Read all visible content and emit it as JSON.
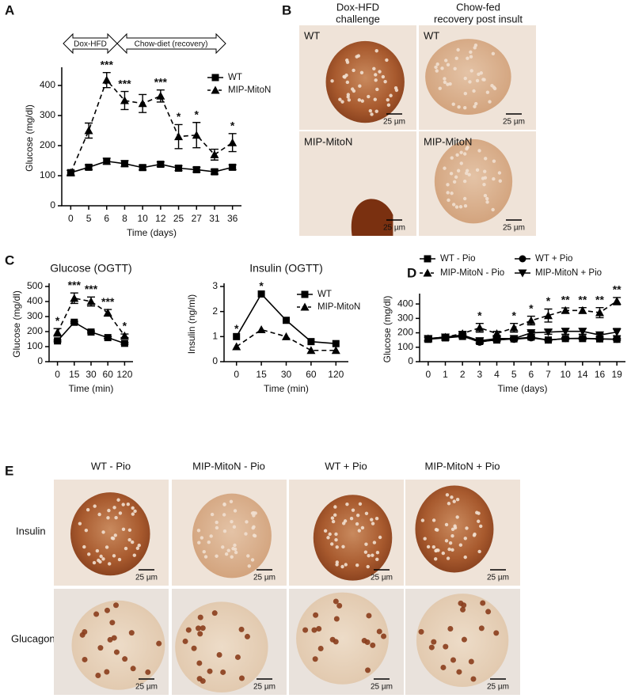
{
  "panel_labels": [
    "A",
    "B",
    "C",
    "D",
    "E"
  ],
  "regimen": [
    "Dox-HFD",
    "Chow-diet (recovery)"
  ],
  "histology_b": {
    "columns": [
      [
        "Dox-HFD",
        "challenge"
      ],
      [
        "Chow-fed",
        "recovery post insult"
      ]
    ],
    "rows": [
      "WT",
      "MIP-MitoN"
    ],
    "scale_bar": "25 µm"
  },
  "histology_e": {
    "columns": [
      "WT - Pio",
      "MIP-MitoN - Pio",
      "WT + Pio",
      "MIP-MitoN + Pio"
    ],
    "rows": [
      "Insulin",
      "Glucagon"
    ],
    "scale_bar": "25 µm"
  },
  "chart_data": [
    {
      "type": "line",
      "xlabel": "Time (days)",
      "ylabel": "Glucose (mg/dl)",
      "categories": [
        "0",
        "5",
        "6",
        "8",
        "10",
        "12",
        "25",
        "27",
        "31",
        "36"
      ],
      "ylim": [
        0,
        450
      ],
      "yticks": [
        0,
        100,
        200,
        300,
        400
      ],
      "series": [
        {
          "name": "WT",
          "color": "#000000",
          "marker": "square",
          "dashed": false,
          "values": [
            110,
            128,
            148,
            140,
            127,
            138,
            125,
            120,
            113,
            128
          ],
          "errors": [
            8,
            8,
            10,
            10,
            8,
            8,
            8,
            8,
            8,
            8
          ]
        },
        {
          "name": "MIP-MitoN",
          "color": "#000000",
          "marker": "triangle",
          "dashed": true,
          "values": [
            110,
            250,
            418,
            350,
            340,
            365,
            230,
            235,
            170,
            210
          ],
          "errors": [
            8,
            25,
            25,
            30,
            30,
            20,
            40,
            42,
            18,
            30
          ]
        }
      ],
      "significance": [
        null,
        null,
        "***",
        "***",
        null,
        "***",
        "*",
        "*",
        null,
        "*"
      ]
    },
    {
      "type": "line",
      "title": "Glucose (OGTT)",
      "xlabel": "Time (min)",
      "ylabel": "Glucose (mg/dl)",
      "categories": [
        "0",
        "15",
        "30",
        "60",
        "120"
      ],
      "ylim": [
        0,
        500
      ],
      "yticks": [
        0,
        100,
        200,
        300,
        400,
        500
      ],
      "series": [
        {
          "name": "WT",
          "color": "#000000",
          "marker": "square",
          "dashed": false,
          "values": [
            138,
            262,
            197,
            160,
            122
          ],
          "errors": [
            6,
            6,
            6,
            6,
            6
          ]
        },
        {
          "name": "MIP-MitoN",
          "color": "#000000",
          "marker": "triangle",
          "dashed": true,
          "values": [
            195,
            422,
            400,
            325,
            172
          ],
          "errors": [
            25,
            35,
            30,
            22,
            12
          ]
        }
      ],
      "significance": [
        "*",
        "***",
        "***",
        "***",
        "*"
      ]
    },
    {
      "type": "line",
      "title": "Insulin (OGTT)",
      "xlabel": "Time (min)",
      "ylabel": "Insulin (ng/ml)",
      "categories": [
        "0",
        "15",
        "30",
        "60",
        "120"
      ],
      "ylim": [
        0,
        3
      ],
      "yticks": [
        0,
        1,
        2,
        3
      ],
      "series": [
        {
          "name": "WT",
          "color": "#000000",
          "marker": "square",
          "dashed": false,
          "values": [
            1.0,
            2.7,
            1.65,
            0.8,
            0.72
          ]
        },
        {
          "name": "MIP-MitoN",
          "color": "#000000",
          "marker": "triangle",
          "dashed": true,
          "values": [
            0.6,
            1.28,
            1.0,
            0.45,
            0.45
          ]
        }
      ],
      "significance": [
        "*",
        "*",
        null,
        null,
        null
      ]
    },
    {
      "type": "line",
      "xlabel": "Time (days)",
      "ylabel": "Glucose (mg/dl)",
      "categories": [
        "0",
        "1",
        "2",
        "3",
        "4",
        "5",
        "6",
        "7",
        "10",
        "14",
        "16",
        "19"
      ],
      "ylim": [
        0,
        450
      ],
      "yticks": [
        0,
        100,
        200,
        300,
        400
      ],
      "series": [
        {
          "name": "WT - Pio",
          "color": "#000000",
          "marker": "square",
          "dashed": false,
          "values": [
            155,
            165,
            175,
            140,
            150,
            158,
            170,
            150,
            160,
            160,
            158,
            155
          ],
          "errors": [
            10,
            10,
            10,
            10,
            8,
            8,
            8,
            6,
            6,
            6,
            6,
            6
          ]
        },
        {
          "name": "MIP-MitoN - Pio",
          "color": "#000000",
          "marker": "triangle",
          "dashed": true,
          "values": [
            160,
            170,
            195,
            235,
            195,
            235,
            285,
            320,
            355,
            355,
            340,
            420
          ],
          "errors": [
            15,
            15,
            15,
            30,
            15,
            30,
            30,
            45,
            18,
            20,
            35,
            25
          ]
        },
        {
          "name": "WT + Pio",
          "color": "#000000",
          "marker": "circle",
          "dashed": false,
          "values": [
            160,
            170,
            180,
            135,
            155,
            155,
            165,
            150,
            160,
            162,
            158,
            155
          ],
          "errors": [
            10,
            10,
            10,
            10,
            8,
            8,
            8,
            6,
            6,
            6,
            6,
            6
          ]
        },
        {
          "name": "MIP-MitoN + Pio",
          "color": "#000000",
          "marker": "triangle-down",
          "dashed": false,
          "values": [
            160,
            170,
            185,
            145,
            160,
            160,
            200,
            205,
            210,
            210,
            185,
            205
          ],
          "errors": [
            10,
            10,
            10,
            15,
            10,
            10,
            10,
            15,
            20,
            20,
            10,
            25
          ]
        }
      ],
      "significance": [
        null,
        null,
        null,
        "*",
        null,
        "*",
        "*",
        "*",
        "**",
        "**",
        "**",
        "**"
      ]
    }
  ]
}
